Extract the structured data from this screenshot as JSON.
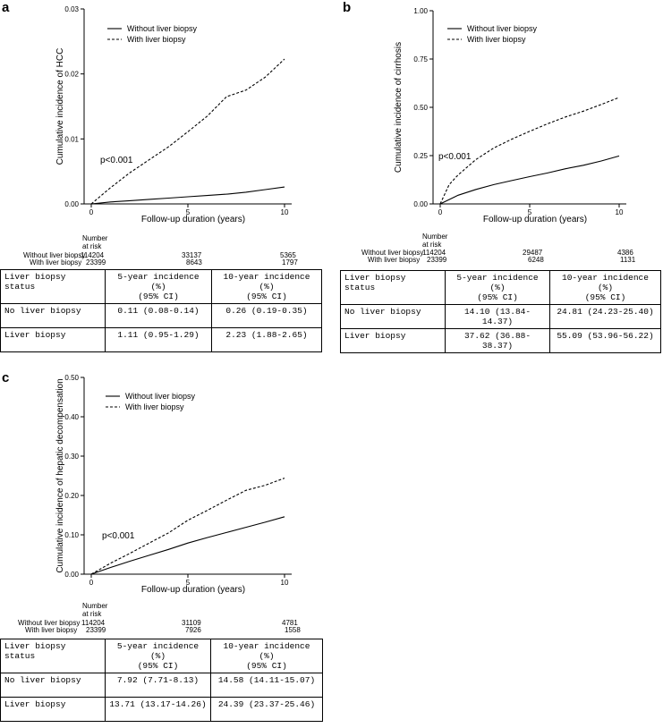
{
  "panels": [
    {
      "letter": "a",
      "pvalue": "p<0.001",
      "risk_title": "Number at risk",
      "risk_rows": [
        {
          "label": "Without liver biopsy",
          "values": [
            "114204",
            "33137",
            "5365"
          ]
        },
        {
          "label": "With liver biopsy",
          "values": [
            "23399",
            "8643",
            "1797"
          ]
        }
      ],
      "table": {
        "headers": [
          "Liver biopsy status",
          "5-year incidence (%)\n(95% CI)",
          "10-year incidence\n(%)\n(95% CI)"
        ],
        "rows": [
          [
            "No liver biopsy",
            "0.11 (0.08-0.14)",
            "0.26 (0.19-0.35)"
          ],
          [
            "Liver biopsy",
            "1.11 (0.95-1.29)",
            "2.23 (1.88-2.65)"
          ]
        ]
      }
    },
    {
      "letter": "b",
      "pvalue": "p<0.001",
      "risk_title": "Number at risk",
      "risk_rows": [
        {
          "label": "Without liver biopsy",
          "values": [
            "114204",
            "29487",
            "4386"
          ]
        },
        {
          "label": "With liver biopsy",
          "values": [
            "23399",
            "6248",
            "1131"
          ]
        }
      ],
      "table": {
        "headers": [
          "Liver biopsy status",
          "5-year incidence (%)\n(95% CI)",
          "10-year incidence\n(%)\n(95% CI)"
        ],
        "rows": [
          [
            "No liver biopsy",
            "14.10 (13.84-14.37)",
            "24.81 (24.23-25.40)"
          ],
          [
            "Liver biopsy",
            "37.62 (36.88-38.37)",
            "55.09 (53.96-56.22)"
          ]
        ]
      }
    },
    {
      "letter": "c",
      "pvalue": "p<0.001",
      "risk_title": "Number at risk",
      "risk_rows": [
        {
          "label": "Without liver biopsy",
          "values": [
            "114204",
            "31109",
            "4781"
          ]
        },
        {
          "label": "With liver biopsy",
          "values": [
            "23399",
            "7926",
            "1558"
          ]
        }
      ],
      "table": {
        "headers": [
          "Liver biopsy status",
          "5-year incidence (%)\n(95% CI)",
          "10-year incidence\n(%)\n(95% CI)"
        ],
        "rows": [
          [
            "No liver biopsy",
            "7.92 (7.71-8.13)",
            "14.58 (14.11-15.07)"
          ],
          [
            "Liver biopsy",
            "13.71 (13.17-14.26)",
            "24.39 (23.37-25.46)"
          ]
        ]
      }
    }
  ],
  "chart_data": [
    {
      "type": "line",
      "xlabel": "Follow-up duration (years)",
      "ylabel": "Cumulative incidence of HCC",
      "xlim": [
        0,
        10
      ],
      "ylim": [
        0,
        0.03
      ],
      "xticks": [
        0,
        5,
        10
      ],
      "xtick_labels": [
        "0",
        "5",
        "10"
      ],
      "yticks": [
        0,
        0.01,
        0.02,
        0.03
      ],
      "ytick_labels": [
        "0.00",
        "0.01",
        "0.02",
        "0.03"
      ],
      "legend": [
        "Without liver biopsy",
        "With liver biopsy"
      ],
      "series": [
        {
          "name": "Without liver biopsy",
          "style": "solid",
          "x": [
            0,
            1,
            2,
            3,
            4,
            5,
            6,
            7,
            8,
            9,
            10
          ],
          "y": [
            0,
            0.0003,
            0.0005,
            0.0007,
            0.0009,
            0.0011,
            0.0013,
            0.0015,
            0.0018,
            0.0022,
            0.0026
          ]
        },
        {
          "name": "With liver biopsy",
          "style": "dashed",
          "x": [
            0,
            1,
            2,
            3,
            4,
            5,
            6,
            7,
            8,
            9,
            10
          ],
          "y": [
            0,
            0.0025,
            0.0048,
            0.0068,
            0.0088,
            0.0111,
            0.0135,
            0.0165,
            0.0175,
            0.0195,
            0.0223
          ]
        }
      ]
    },
    {
      "type": "line",
      "xlabel": "Follow-up duration (years)",
      "ylabel": "Cumulative incidence of cirrhosis",
      "xlim": [
        0,
        10
      ],
      "ylim": [
        0,
        1
      ],
      "xticks": [
        0,
        5,
        10
      ],
      "xtick_labels": [
        "0",
        "5",
        "10"
      ],
      "yticks": [
        0,
        0.25,
        0.5,
        0.75,
        1
      ],
      "ytick_labels": [
        "0.00",
        "0.25",
        "0.50",
        "0.75",
        "1.00"
      ],
      "legend": [
        "Without liver biopsy",
        "With liver biopsy"
      ],
      "series": [
        {
          "name": "Without liver biopsy",
          "style": "solid",
          "x": [
            0,
            1,
            2,
            3,
            4,
            5,
            6,
            7,
            8,
            9,
            10
          ],
          "y": [
            0,
            0.045,
            0.075,
            0.1,
            0.121,
            0.141,
            0.16,
            0.182,
            0.2,
            0.222,
            0.248
          ]
        },
        {
          "name": "With liver biopsy",
          "style": "dashed",
          "x": [
            0,
            0.5,
            1,
            2,
            3,
            4,
            5,
            6,
            7,
            8,
            9,
            10
          ],
          "y": [
            0,
            0.1,
            0.15,
            0.23,
            0.29,
            0.335,
            0.376,
            0.415,
            0.45,
            0.48,
            0.515,
            0.551
          ]
        }
      ]
    },
    {
      "type": "line",
      "xlabel": "Follow-up duration (years)",
      "ylabel": "Cumulative incidence of hepatic decompensation",
      "xlim": [
        0,
        10
      ],
      "ylim": [
        0,
        0.5
      ],
      "xticks": [
        0,
        5,
        10
      ],
      "xtick_labels": [
        "0",
        "5",
        "10"
      ],
      "yticks": [
        0,
        0.1,
        0.2,
        0.3,
        0.4,
        0.5
      ],
      "ytick_labels": [
        "0.00",
        "0.10",
        "0.20",
        "0.30",
        "0.40",
        "0.50"
      ],
      "legend": [
        "Without liver biopsy",
        "With liver biopsy"
      ],
      "series": [
        {
          "name": "Without liver biopsy",
          "style": "solid",
          "x": [
            0,
            1,
            2,
            3,
            4,
            5,
            6,
            7,
            8,
            9,
            10
          ],
          "y": [
            0,
            0.017,
            0.033,
            0.048,
            0.063,
            0.079,
            0.093,
            0.106,
            0.119,
            0.132,
            0.146
          ]
        },
        {
          "name": "With liver biopsy",
          "style": "dashed",
          "x": [
            0,
            1,
            2,
            3,
            4,
            5,
            6,
            7,
            8,
            9,
            10
          ],
          "y": [
            0,
            0.028,
            0.053,
            0.079,
            0.105,
            0.137,
            0.162,
            0.188,
            0.213,
            0.226,
            0.244
          ]
        }
      ]
    }
  ]
}
